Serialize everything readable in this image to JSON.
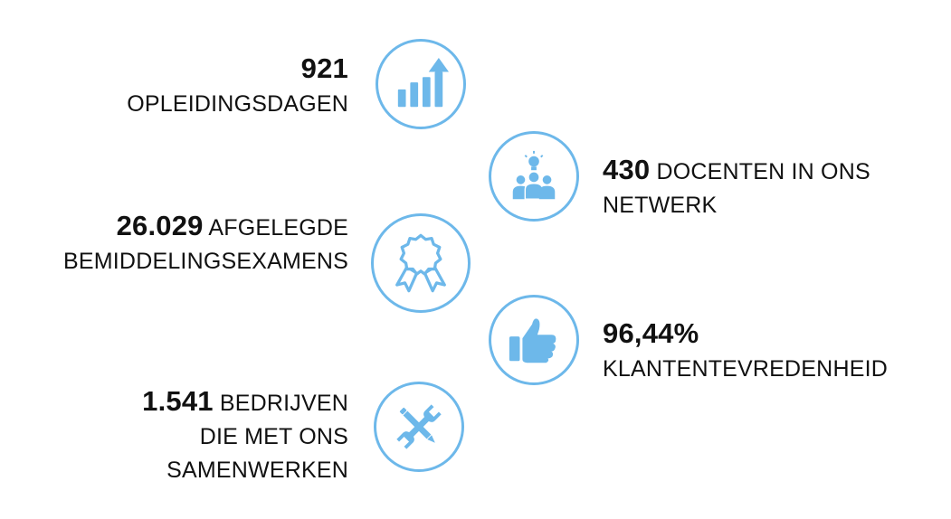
{
  "accent_color": "#6db8ea",
  "stats": [
    {
      "number": "921",
      "text_1": "",
      "text_2": "OPLEIDINGSDAGEN",
      "text_3": "",
      "icon": "bar-chart-growth-icon"
    },
    {
      "number": "430",
      "text_1": "DOCENTEN IN ONS",
      "text_2": "NETWERK",
      "text_3": "",
      "icon": "team-idea-icon"
    },
    {
      "number": "26.029",
      "text_1": "AFGELEGDE",
      "text_2": "BEMIDDELINGSEXAMENS",
      "text_3": "",
      "icon": "award-badge-icon"
    },
    {
      "number": "96,44%",
      "text_1": "",
      "text_2": "KLANTENTEVREDENHEID",
      "text_3": "",
      "icon": "thumbs-up-icon"
    },
    {
      "number": "1.541",
      "text_1": "BEDRIJVEN",
      "text_2": "DIE MET ONS",
      "text_3": "SAMENWERKEN",
      "icon": "tools-icon"
    }
  ]
}
